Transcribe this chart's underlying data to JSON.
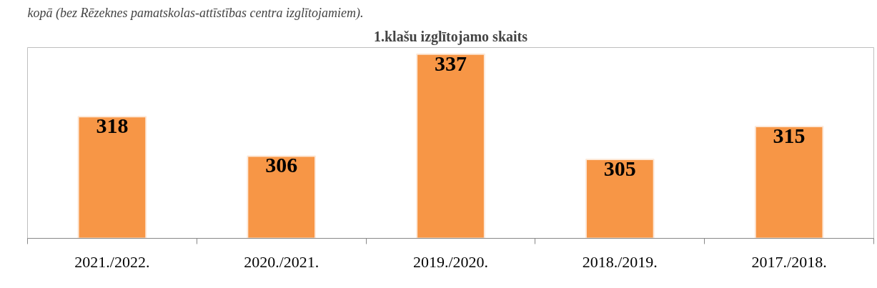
{
  "chart_data": {
    "type": "bar",
    "title": "1.klašu izglītojamo skaits",
    "annotations": [
      "kopā (bez Rēzeknes pamatskolas-attīstības centra izglītojamiem)."
    ],
    "categories": [
      "2021./2022.",
      "2020./2021.",
      "2019./2020.",
      "2018./2019.",
      "2017./2018."
    ],
    "values": [
      318,
      306,
      337,
      305,
      315
    ],
    "color": "#f79646",
    "ylim": [
      281,
      339
    ],
    "tick_labels": "x",
    "data_labels": true,
    "grid": false
  }
}
